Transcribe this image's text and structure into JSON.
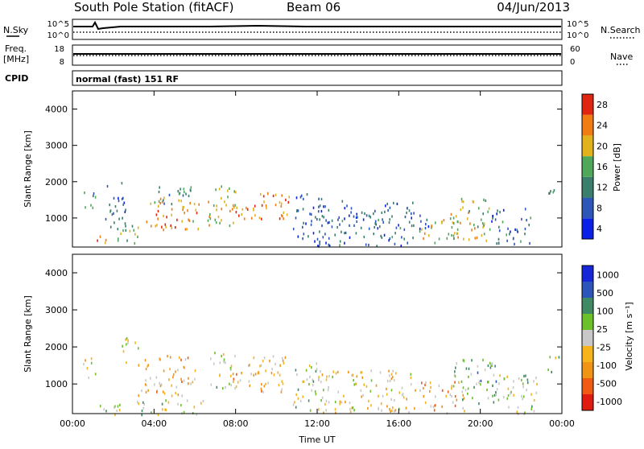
{
  "header": {
    "station": "South Pole Station (fitACF)",
    "beam": "Beam 06",
    "date": "04/Jun/2013"
  },
  "panels": {
    "nsky_label": "N.Sky",
    "nsky_ticks": [
      "10^5",
      "10^0"
    ],
    "nsearch_label": "N.Search",
    "nsearch_ticks": [
      "10^5",
      "10^0"
    ],
    "freq_label": "Freq.",
    "freq_unit": "[MHz]",
    "freq_ticks": [
      "18",
      "8"
    ],
    "nave_label": "Nave",
    "nave_ticks": [
      "60",
      "0"
    ],
    "cpid_label": "CPID",
    "cpid_text": "normal (fast) 151 RF"
  },
  "chart_data": [
    {
      "type": "heatmap",
      "name": "power",
      "ylabel": "Slant Range [km]",
      "ylim": [
        200,
        4500
      ],
      "yticks": [
        "4000",
        "3000",
        "2000",
        "1000"
      ],
      "xlim": [
        0,
        24
      ],
      "colorbar": {
        "label": "Power [dB]",
        "ticks": [
          "28",
          "24",
          "20",
          "16",
          "12",
          "8",
          "4"
        ],
        "range": [
          0,
          30
        ],
        "colors": [
          "#0a1fe8",
          "#2c57b8",
          "#3a7f6b",
          "#4fa85a",
          "#e2b21c",
          "#f07c14",
          "#e02610"
        ]
      },
      "clusters": [
        {
          "t0": 0.45,
          "t1": 1.1,
          "r0": 1200,
          "r1": 1800,
          "value": 12
        },
        {
          "t0": 1.0,
          "t1": 1.7,
          "r0": 300,
          "r1": 600,
          "value": 24
        },
        {
          "t0": 1.6,
          "t1": 2.6,
          "r0": 600,
          "r1": 2000,
          "value": 9
        },
        {
          "t0": 2.2,
          "t1": 3.4,
          "r0": 250,
          "r1": 900,
          "value": 14
        },
        {
          "t0": 3.5,
          "t1": 6.2,
          "r0": 700,
          "r1": 1600,
          "value": 22
        },
        {
          "t0": 4.0,
          "t1": 5.8,
          "r0": 1400,
          "r1": 2000,
          "value": 11
        },
        {
          "t0": 6.6,
          "t1": 8.0,
          "r0": 800,
          "r1": 2000,
          "value": 18
        },
        {
          "t0": 7.8,
          "t1": 9.4,
          "r0": 900,
          "r1": 1400,
          "value": 24
        },
        {
          "t0": 8.8,
          "t1": 10.6,
          "r0": 1000,
          "r1": 1800,
          "value": 23
        },
        {
          "t0": 10.8,
          "t1": 12.2,
          "r0": 300,
          "r1": 1700,
          "value": 6
        },
        {
          "t0": 12.0,
          "t1": 16.8,
          "r0": 250,
          "r1": 1500,
          "value": 8
        },
        {
          "t0": 16.5,
          "t1": 17.5,
          "r0": 600,
          "r1": 1200,
          "value": 7
        },
        {
          "t0": 17.0,
          "t1": 19.0,
          "r0": 300,
          "r1": 1000,
          "value": 20
        },
        {
          "t0": 18.5,
          "t1": 20.5,
          "r0": 400,
          "r1": 1600,
          "value": 17
        },
        {
          "t0": 20.5,
          "t1": 22.5,
          "r0": 300,
          "r1": 1300,
          "value": 8
        },
        {
          "t0": 23.3,
          "t1": 23.9,
          "r0": 1300,
          "r1": 1800,
          "value": 14
        }
      ]
    },
    {
      "type": "heatmap",
      "name": "velocity",
      "ylabel": "Slant Range [km]",
      "ylim": [
        200,
        4500
      ],
      "yticks": [
        "4000",
        "3000",
        "2000",
        "1000"
      ],
      "xlim": [
        0,
        24
      ],
      "xlabel": "Time UT",
      "xticks": [
        "00:00",
        "04:00",
        "08:00",
        "12:00",
        "16:00",
        "20:00",
        "00:00"
      ],
      "colorbar": {
        "label": "Velocity [m s⁻¹]",
        "ticks": [
          "1000",
          "500",
          "100",
          "25",
          "-25",
          "-100",
          "-500",
          "-1000"
        ],
        "range": [
          -1200,
          1200
        ],
        "colors": [
          "#e01b10",
          "#f05a12",
          "#f09416",
          "#f5b31c",
          "#c8c8c8",
          "#6cc02a",
          "#3f8a63",
          "#2b55b8",
          "#1627d8"
        ]
      },
      "clusters": [
        {
          "t0": 0.45,
          "t1": 1.1,
          "r0": 1200,
          "r1": 1800,
          "value": -80
        },
        {
          "t0": 0.8,
          "t1": 2.6,
          "r0": 200,
          "r1": 500,
          "value": 60
        },
        {
          "t0": 2.4,
          "t1": 3.2,
          "r0": 1600,
          "r1": 2300,
          "value": 0
        },
        {
          "t0": 3.2,
          "t1": 6.0,
          "r0": 700,
          "r1": 1800,
          "value": -300
        },
        {
          "t0": 3.0,
          "t1": 6.5,
          "r0": 200,
          "r1": 600,
          "value": 120
        },
        {
          "t0": 6.6,
          "t1": 7.8,
          "r0": 900,
          "r1": 1900,
          "value": 80
        },
        {
          "t0": 7.8,
          "t1": 10.6,
          "r0": 800,
          "r1": 1800,
          "value": -300
        },
        {
          "t0": 10.8,
          "t1": 12.2,
          "r0": 300,
          "r1": 1600,
          "value": 140
        },
        {
          "t0": 12.0,
          "t1": 16.8,
          "r0": 250,
          "r1": 1400,
          "value": -200
        },
        {
          "t0": 17.0,
          "t1": 19.2,
          "r0": 200,
          "r1": 1100,
          "value": -400
        },
        {
          "t0": 18.5,
          "t1": 20.8,
          "r0": 500,
          "r1": 1700,
          "value": 300
        },
        {
          "t0": 20.5,
          "t1": 22.8,
          "r0": 200,
          "r1": 1300,
          "value": 110
        },
        {
          "t0": 23.3,
          "t1": 23.9,
          "r0": 1300,
          "r1": 1800,
          "value": 60
        }
      ]
    }
  ]
}
